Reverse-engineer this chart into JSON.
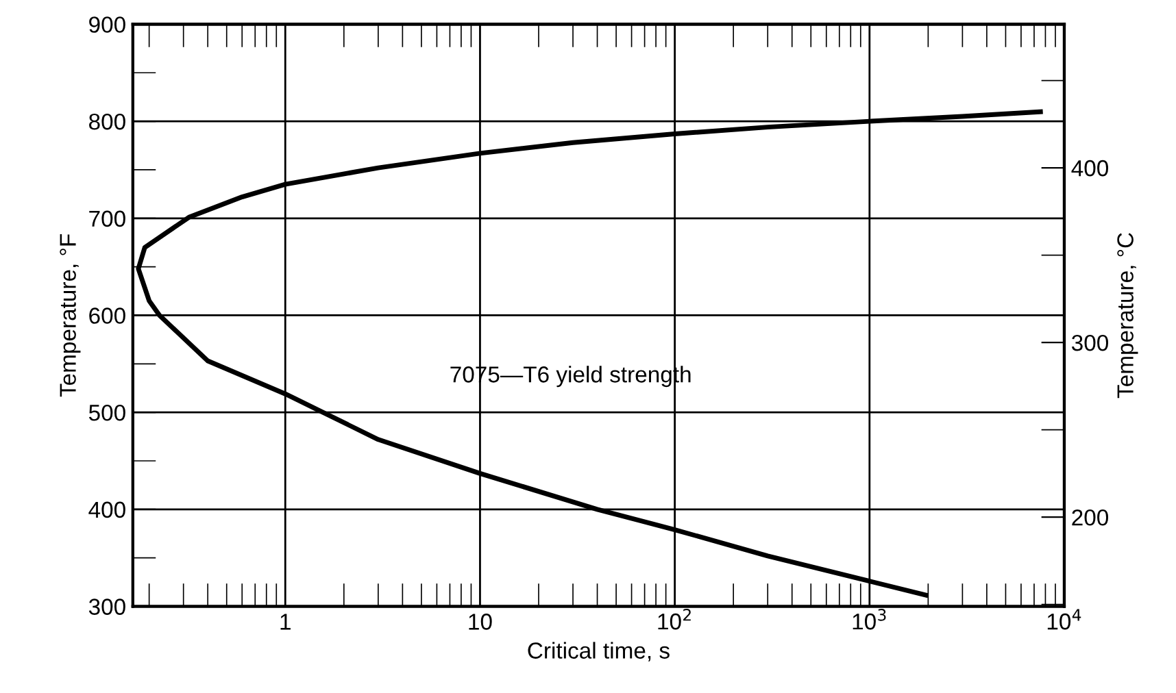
{
  "chart_data": {
    "type": "line",
    "xlabel": "Critical time, s",
    "ylabel": "Temperature, °F",
    "y2label": "Temperature, °C",
    "log": "x",
    "grid": true,
    "legend": false,
    "annotations": [
      "7075—T6 yield strength"
    ],
    "xlim": [
      0.165,
      10000
    ],
    "xticks": [
      1,
      10,
      {
        "value": 100,
        "label": "10$^{2}$"
      },
      {
        "value": 1000,
        "label": "10$^{3}$"
      },
      {
        "value": 10000,
        "label": "10$^{4}$"
      }
    ],
    "ylim": [
      300,
      900
    ],
    "yticks": [
      300,
      400,
      500,
      600,
      700,
      800,
      900
    ],
    "y2lim": [
      148.9,
      482.2
    ],
    "y2ticks": [
      200,
      300,
      400
    ],
    "series": [
      {
        "color": "#000000",
        "x": [
          7760,
          3000,
          1000,
          300,
          100,
          30,
          10,
          3,
          1,
          0.6,
          0.32,
          0.19,
          0.176,
          0.2,
          0.226,
          0.4,
          1,
          1.56,
          3,
          10,
          40,
          100,
          300,
          1000,
          2000
        ],
        "values": [
          810,
          805,
          800,
          794,
          787,
          778,
          767,
          752,
          735,
          722,
          701,
          670,
          648,
          615,
          600,
          553,
          519,
          500,
          472,
          437,
          400,
          379,
          352,
          326,
          311
        ]
      }
    ]
  }
}
